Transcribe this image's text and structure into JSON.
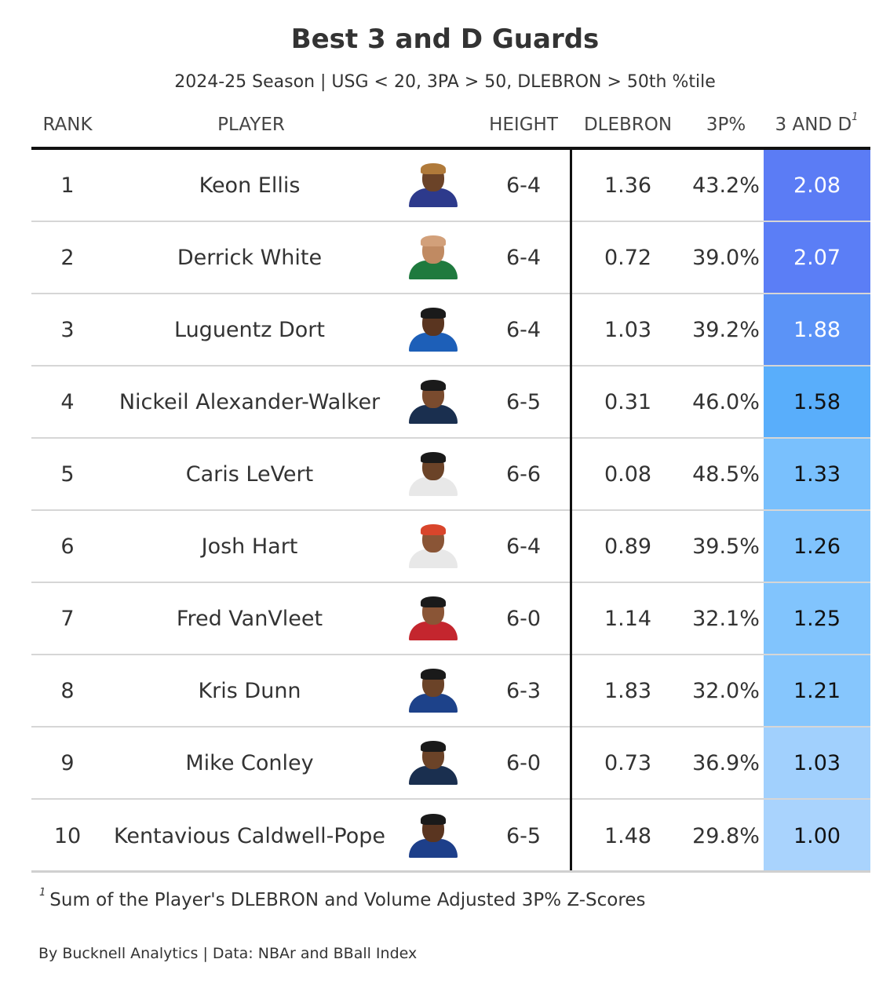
{
  "title": "Best 3 and D Guards",
  "subtitle": "2024-25 Season | USG < 20, 3PA > 50, DLEBRON > 50th %tile",
  "headers": {
    "rank": "RANK",
    "player": "PLAYER",
    "height": "HEIGHT",
    "dlebron": "DLEBRON",
    "three_pct": "3P%",
    "three_and_d": "3 AND D",
    "three_and_d_marker": "1"
  },
  "footnote": {
    "marker": "1",
    "text": "Sum of the Player's DLEBRON and Volume Adjusted 3P% Z-Scores"
  },
  "credit": "By Bucknell Analytics | Data: NBAr and BBall Index",
  "colors": {
    "scale_high": "#5b7cf5",
    "scale_low": "#a9d3fd"
  },
  "chart_data": {
    "type": "table",
    "columns": [
      "RANK",
      "PLAYER",
      "HEIGHT",
      "DLEBRON",
      "3P%",
      "3 AND D"
    ],
    "rows": [
      {
        "rank": "1",
        "player": "Keon Ellis",
        "height": "6-4",
        "dlebron": "1.36",
        "three_pct": "43.2%",
        "score": "2.08",
        "bg": "#5b7cf5",
        "fg": "#ffffff",
        "jersey": "#2d3a8c",
        "skin": "#6b4328",
        "hair": "#b07a3a"
      },
      {
        "rank": "2",
        "player": "Derrick White",
        "height": "6-4",
        "dlebron": "0.72",
        "three_pct": "39.0%",
        "score": "2.07",
        "bg": "#5b7ef6",
        "fg": "#ffffff",
        "jersey": "#1f7a3e",
        "skin": "#c08a62",
        "hair": "#d2a07a"
      },
      {
        "rank": "3",
        "player": "Luguentz Dort",
        "height": "6-4",
        "dlebron": "1.03",
        "three_pct": "39.2%",
        "score": "1.88",
        "bg": "#5b93f7",
        "fg": "#ffffff",
        "jersey": "#1d5fb8",
        "skin": "#5a3520",
        "hair": "#1a1a1a"
      },
      {
        "rank": "4",
        "player": "Nickeil Alexander-Walker",
        "height": "6-5",
        "dlebron": "0.31",
        "three_pct": "46.0%",
        "score": "1.58",
        "bg": "#59aefb",
        "fg": "#111111",
        "jersey": "#1a2f4f",
        "skin": "#7a4b2e",
        "hair": "#1a1a1a"
      },
      {
        "rank": "5",
        "player": "Caris LeVert",
        "height": "6-6",
        "dlebron": "0.08",
        "three_pct": "48.5%",
        "score": "1.33",
        "bg": "#79c0fd",
        "fg": "#111111",
        "jersey": "#e8e8e8",
        "skin": "#6b4328",
        "hair": "#1a1a1a"
      },
      {
        "rank": "6",
        "player": "Josh Hart",
        "height": "6-4",
        "dlebron": "0.89",
        "three_pct": "39.5%",
        "score": "1.26",
        "bg": "#80c3fd",
        "fg": "#111111",
        "jersey": "#e8e8e8",
        "skin": "#8a5536",
        "hair": "#d9452b"
      },
      {
        "rank": "7",
        "player": "Fred VanVleet",
        "height": "6-0",
        "dlebron": "1.14",
        "three_pct": "32.1%",
        "score": "1.25",
        "bg": "#81c4fd",
        "fg": "#111111",
        "jersey": "#c4262e",
        "skin": "#8a5536",
        "hair": "#1a1a1a"
      },
      {
        "rank": "8",
        "player": "Kris Dunn",
        "height": "6-3",
        "dlebron": "1.83",
        "three_pct": "32.0%",
        "score": "1.21",
        "bg": "#86c6fd",
        "fg": "#111111",
        "jersey": "#1d428a",
        "skin": "#6b4328",
        "hair": "#1a1a1a"
      },
      {
        "rank": "9",
        "player": "Mike Conley",
        "height": "6-0",
        "dlebron": "0.73",
        "three_pct": "36.9%",
        "score": "1.03",
        "bg": "#a1d0fd",
        "fg": "#111111",
        "jersey": "#1a2f4f",
        "skin": "#6b4328",
        "hair": "#1a1a1a"
      },
      {
        "rank": "10",
        "player": "Kentavious Caldwell-Pope",
        "height": "6-5",
        "dlebron": "1.48",
        "three_pct": "29.8%",
        "score": "1.00",
        "bg": "#a9d3fd",
        "fg": "#111111",
        "jersey": "#1d3f8a",
        "skin": "#5a3520",
        "hair": "#1a1a1a"
      }
    ]
  }
}
